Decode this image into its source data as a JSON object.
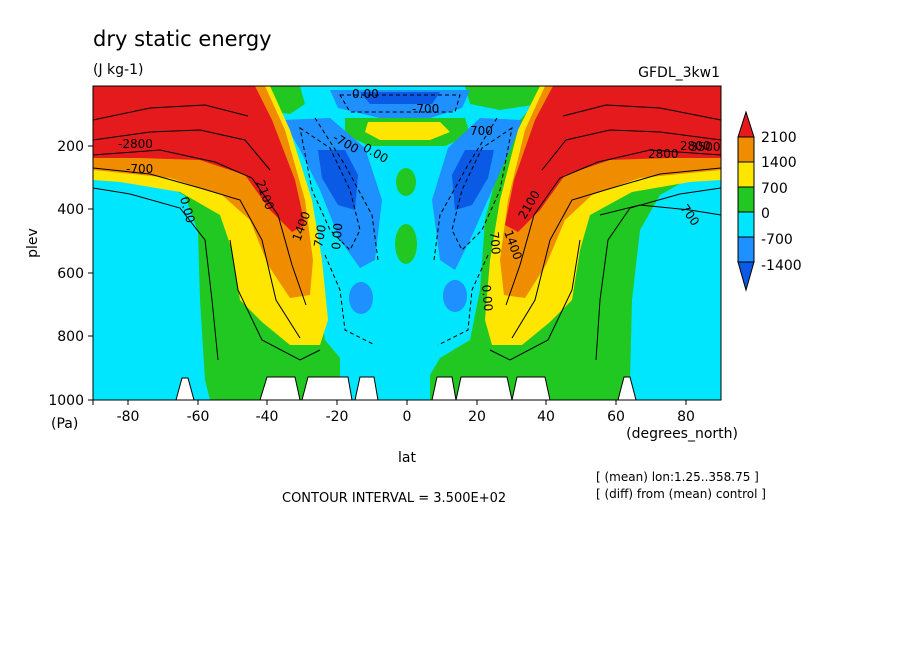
{
  "chart_data": {
    "type": "heatmap",
    "title": "dry static energy",
    "units": "(J kg-1)",
    "dataset_label": "GFDL_3kw1",
    "xlabel": "lat",
    "x_units": "(degrees_north)",
    "ylabel": "plev",
    "y_units": "(Pa)",
    "xlim": [
      -90,
      90
    ],
    "ylim": [
      1000,
      0
    ],
    "x_ticks": [
      "-80",
      "-60",
      "-40",
      "-20",
      "0",
      "20",
      "40",
      "60",
      "80"
    ],
    "y_ticks": [
      "200",
      "400",
      "600",
      "800",
      "1000"
    ],
    "contour_interval": "CONTOUR INTERVAL = 3.500E+02",
    "notes": [
      "[ (mean) lon:1.25..358.75 ]",
      "[ (diff) from (mean) control ]"
    ],
    "colorbar": {
      "labels": [
        "2100",
        "1400",
        "700",
        "0",
        "-700",
        "-1400"
      ],
      "colors": [
        "#e41a1c",
        "#f08c00",
        "#ffe600",
        "#22c822",
        "#00e6ff",
        "#1e90ff",
        "#0a5ae6"
      ]
    },
    "contour_labels": [
      "0.00",
      "-700",
      "-700",
      "700",
      "0.00",
      "-2800",
      "-700",
      "2100",
      "1400",
      "700",
      "0.00",
      "2800",
      "2800",
      "3500",
      "2100",
      "700",
      "1400",
      "0.00",
      "700",
      "0.00"
    ]
  },
  "colors": {
    "red": "#e41a1c",
    "orange": "#f08c00",
    "yellow": "#ffe600",
    "green": "#22c822",
    "cyan": "#00e6ff",
    "blue": "#1e90ff",
    "darkblue": "#0a5ae6"
  }
}
